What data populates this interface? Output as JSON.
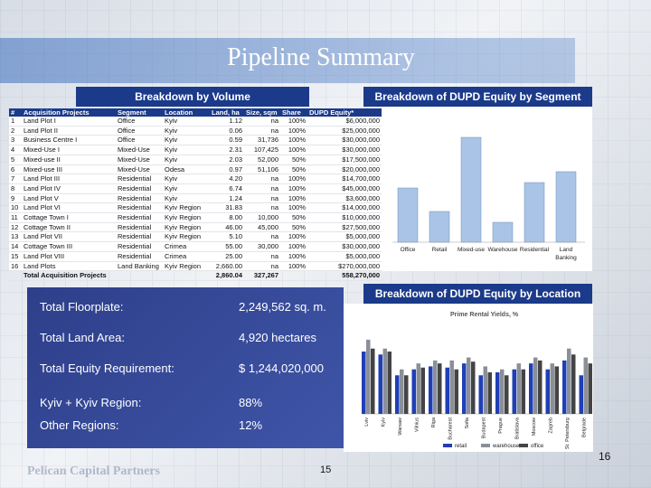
{
  "title": "Pipeline Summary",
  "headers": {
    "volume": "Breakdown by Volume",
    "segment": "Breakdown of DUPD Equity by Segment",
    "location": "Breakdown of DUPD Equity by Location"
  },
  "table": {
    "columns": [
      "#",
      "Acquisition Projects",
      "Segment",
      "Location",
      "Land, ha",
      "Size, sqm",
      "Share",
      "DUPD Equity*"
    ],
    "rows": [
      [
        "1",
        "Land Plot I",
        "Office",
        "Kyiv",
        "1.12",
        "na",
        "100%",
        "$6,000,000"
      ],
      [
        "2",
        "Land Plot II",
        "Office",
        "Kyiv",
        "0.06",
        "na",
        "100%",
        "$25,000,000"
      ],
      [
        "3",
        "Business Centre I",
        "Office",
        "Kyiv",
        "0.59",
        "31,736",
        "100%",
        "$30,000,000"
      ],
      [
        "4",
        "Mixed-Use I",
        "Mixed-Use",
        "Kyiv",
        "2.31",
        "107,425",
        "100%",
        "$30,000,000"
      ],
      [
        "5",
        "Mixed-use II",
        "Mixed-Use",
        "Kyiv",
        "2.03",
        "52,000",
        "50%",
        "$17,500,000"
      ],
      [
        "6",
        "Mixed-use III",
        "Mixed-Use",
        "Odesa",
        "0.97",
        "51,106",
        "50%",
        "$20,000,000"
      ],
      [
        "7",
        "Land Plot III",
        "Residential",
        "Kyiv",
        "4.20",
        "na",
        "100%",
        "$14,700,000"
      ],
      [
        "8",
        "Land Plot IV",
        "Residential",
        "Kyiv",
        "6.74",
        "na",
        "100%",
        "$45,000,000"
      ],
      [
        "9",
        "Land Plot V",
        "Residential",
        "Kyiv",
        "1.24",
        "na",
        "100%",
        "$3,600,000"
      ],
      [
        "10",
        "Land Plot VI",
        "Residential",
        "Kyiv Region",
        "31.83",
        "na",
        "100%",
        "$14,000,000"
      ],
      [
        "11",
        "Cottage Town I",
        "Residential",
        "Kyiv Region",
        "8.00",
        "10,000",
        "50%",
        "$10,000,000"
      ],
      [
        "12",
        "Cottage Town II",
        "Residential",
        "Kyiv Region",
        "46.00",
        "45,000",
        "50%",
        "$27,500,000"
      ],
      [
        "13",
        "Land Plot VII",
        "Residential",
        "Kyiv Region",
        "5.10",
        "na",
        "100%",
        "$5,000,000"
      ],
      [
        "14",
        "Cottage Town III",
        "Residential",
        "Crimea",
        "55.00",
        "30,000",
        "100%",
        "$30,000,000"
      ],
      [
        "15",
        "Land Plot VIII",
        "Residential",
        "Crimea",
        "25.00",
        "na",
        "100%",
        "$5,000,000"
      ],
      [
        "16",
        "Land Plots",
        "Land Banking",
        "Kyiv Region",
        "2,660.00",
        "na",
        "100%",
        "$270,000,000"
      ]
    ],
    "total": [
      "",
      "Total Acquisition Projects",
      "",
      "",
      "2,860.04",
      "327,267",
      "",
      "558,270,000"
    ]
  },
  "stats": [
    {
      "label": "Total Floorplate:",
      "value": "2,249,562 sq. m."
    },
    {
      "label": "Total Land Area:",
      "value": "4,920 hectares"
    },
    {
      "label": "Total Equity Requirement:",
      "value": "$ 1,244,020,000"
    },
    {
      "label": "Kyiv + Kyiv Region:",
      "value": "88%"
    },
    {
      "label": "Other Regions:",
      "value": "12%"
    }
  ],
  "page_numbers": {
    "center": "15",
    "right": "16"
  },
  "logo_text": "Pelican Capital Partners",
  "chart_data": [
    {
      "type": "bar",
      "categories": [
        "Office",
        "Retail",
        "Mixed-use",
        "Warehouse",
        "Residential",
        "Land Banking"
      ],
      "values": [
        300,
        170,
        580,
        110,
        330,
        390
      ],
      "color": "#a9c4e6"
    },
    {
      "type": "bar",
      "title": "Prime Rental Yields, %",
      "categories": [
        "Lviv",
        "Kyiv",
        "Warsaw",
        "Vilnius",
        "Riga",
        "Bucharest",
        "Sofia",
        "Budapest",
        "Prague",
        "Bratislava",
        "Moscow",
        "Zagreb",
        "St. Petersburg",
        "Belgrade"
      ],
      "series": [
        {
          "name": "retail",
          "values": [
            10.5,
            10.0,
            6.5,
            7.5,
            8.0,
            7.8,
            8.5,
            6.5,
            7.0,
            7.5,
            8.5,
            7.5,
            9.0,
            6.5
          ]
        },
        {
          "name": "warehouse",
          "values": [
            12.5,
            11.0,
            7.5,
            8.5,
            9.0,
            9.0,
            9.5,
            8.0,
            7.5,
            8.5,
            9.5,
            8.5,
            11.0,
            9.5
          ]
        },
        {
          "name": "office",
          "values": [
            11.0,
            10.5,
            6.5,
            7.8,
            8.5,
            7.5,
            8.8,
            7.0,
            6.5,
            7.5,
            9.0,
            8.0,
            10.0,
            8.5
          ]
        }
      ],
      "legend": [
        "retail",
        "warehouse",
        "office"
      ],
      "colors": {
        "retail": "#1f3fb5",
        "warehouse": "#8a8f99",
        "office": "#444444"
      },
      "ylim": [
        0,
        14
      ]
    }
  ]
}
